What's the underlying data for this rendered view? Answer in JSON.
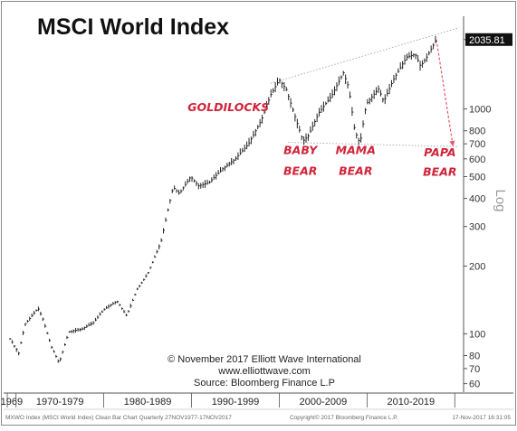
{
  "chart_data": {
    "type": "bar",
    "title": "MSCI World Index",
    "yscale": "log",
    "ylim": [
      55,
      2400
    ],
    "xlim": [
      1969.0,
      2021.0
    ],
    "last_value_label": "2035.81",
    "y_axis_title": "Log",
    "yticks": [
      {
        "value": 2035.81,
        "label": "2035.81"
      },
      {
        "value": 1000,
        "label": "1000"
      },
      {
        "value": 800,
        "label": "800"
      },
      {
        "value": 700,
        "label": "700"
      },
      {
        "value": 600,
        "label": "600"
      },
      {
        "value": 500,
        "label": "500"
      },
      {
        "value": 400,
        "label": "400"
      },
      {
        "value": 300,
        "label": "300"
      },
      {
        "value": 200,
        "label": "200"
      },
      {
        "value": 100,
        "label": "100"
      },
      {
        "value": 80,
        "label": "80"
      },
      {
        "value": 70,
        "label": "70"
      },
      {
        "value": 60,
        "label": "60"
      }
    ],
    "x_sections": [
      {
        "label": "1969",
        "start": 1969.0,
        "end": 1970.0
      },
      {
        "label": "1970-1979",
        "start": 1970.0,
        "end": 1980.0
      },
      {
        "label": "1980-1989",
        "start": 1980.0,
        "end": 1990.0
      },
      {
        "label": "1990-1999",
        "start": 1990.0,
        "end": 2000.0
      },
      {
        "label": "2000-2009",
        "start": 2000.0,
        "end": 2010.0
      },
      {
        "label": "2010-2019",
        "start": 2010.0,
        "end": 2020.0
      }
    ],
    "anchors": [
      [
        1969.3,
        95
      ],
      [
        1970.3,
        82
      ],
      [
        1971.0,
        110
      ],
      [
        1972.5,
        130
      ],
      [
        1973.0,
        118
      ],
      [
        1974.0,
        88
      ],
      [
        1974.9,
        74
      ],
      [
        1976.0,
        102
      ],
      [
        1977.5,
        105
      ],
      [
        1978.8,
        112
      ],
      [
        1980.0,
        128
      ],
      [
        1981.5,
        140
      ],
      [
        1982.6,
        120
      ],
      [
        1983.8,
        158
      ],
      [
        1985.0,
        185
      ],
      [
        1986.5,
        255
      ],
      [
        1987.4,
        370
      ],
      [
        1987.9,
        450
      ],
      [
        1988.6,
        420
      ],
      [
        1989.9,
        500
      ],
      [
        1990.8,
        455
      ],
      [
        1992.0,
        470
      ],
      [
        1993.5,
        540
      ],
      [
        1995.0,
        600
      ],
      [
        1996.5,
        700
      ],
      [
        1998.0,
        900
      ],
      [
        1999.0,
        1150
      ],
      [
        2000.0,
        1350
      ],
      [
        2000.8,
        1220
      ],
      [
        2001.7,
        950
      ],
      [
        2002.7,
        720
      ],
      [
        2003.3,
        760
      ],
      [
        2004.5,
        960
      ],
      [
        2006.0,
        1150
      ],
      [
        2007.3,
        1450
      ],
      [
        2007.9,
        1250
      ],
      [
        2008.6,
        800
      ],
      [
        2009.2,
        700
      ],
      [
        2009.9,
        1050
      ],
      [
        2011.3,
        1230
      ],
      [
        2011.9,
        1080
      ],
      [
        2013.0,
        1350
      ],
      [
        2014.5,
        1700
      ],
      [
        2015.5,
        1750
      ],
      [
        2016.1,
        1550
      ],
      [
        2016.8,
        1700
      ],
      [
        2017.9,
        2035.81
      ]
    ],
    "annotations": [
      {
        "text": "GOLDILOCKS",
        "x": 1994.2,
        "y": 980
      },
      {
        "text": "BABY",
        "x": 2002.4,
        "y": 630
      },
      {
        "text": "BEAR",
        "x": 2002.4,
        "y": 510
      },
      {
        "text": "MAMA",
        "x": 2008.7,
        "y": 630
      },
      {
        "text": "BEAR",
        "x": 2008.7,
        "y": 510
      },
      {
        "text": "PAPA",
        "x": 2018.3,
        "y": 615
      },
      {
        "text": "BEAR",
        "x": 2018.3,
        "y": 505
      }
    ],
    "trend_lines": [
      {
        "from": [
          1999.0,
          1300
        ],
        "to": [
          2020.5,
          2300
        ],
        "style": "dotted"
      },
      {
        "from": [
          2001.0,
          710
        ],
        "to": [
          2020.5,
          680
        ],
        "style": "dotted"
      }
    ],
    "projection_arrow": {
      "from": [
        2017.9,
        2035.81
      ],
      "to": [
        2019.8,
        680
      ]
    },
    "credits": [
      "© November 2017 Elliott Wave International",
      "www.elliottwave.com",
      "Source: Bloomberg Finance L.P"
    ],
    "footer": {
      "left": "MXWO Index (MSCI World Index) Clean Bar Chart  Quarterly 27NOV1977-17NOV2017",
      "center": "Copyright© 2017 Bloomberg Finance L.P.",
      "right": "17-Nov-2017 16:31:05"
    },
    "colors": {
      "bars": "#222222",
      "annotation": "#d0243a",
      "trend": "#999999",
      "arrow": "#e25a6a"
    }
  }
}
